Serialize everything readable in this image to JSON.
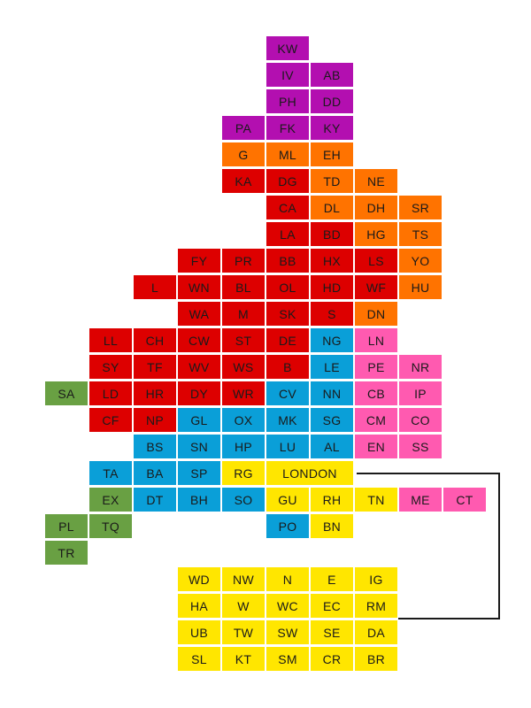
{
  "colors": {
    "purple": "#b30fb0",
    "orange": "#ff7300",
    "red": "#dd0000",
    "green": "#69a043",
    "blue": "#0a9fd8",
    "pink": "#ff5ab0",
    "yellow": "#ffe600"
  },
  "tiles": [
    {
      "code": "KW",
      "color": "purple"
    },
    {
      "code": "IV",
      "color": "purple"
    },
    {
      "code": "AB",
      "color": "purple"
    },
    {
      "code": "PH",
      "color": "purple"
    },
    {
      "code": "DD",
      "color": "purple"
    },
    {
      "code": "PA",
      "color": "purple"
    },
    {
      "code": "FK",
      "color": "purple"
    },
    {
      "code": "KY",
      "color": "purple"
    },
    {
      "code": "G",
      "color": "orange"
    },
    {
      "code": "ML",
      "color": "orange"
    },
    {
      "code": "EH",
      "color": "orange"
    },
    {
      "code": "KA",
      "color": "red"
    },
    {
      "code": "DG",
      "color": "red"
    },
    {
      "code": "TD",
      "color": "orange"
    },
    {
      "code": "NE",
      "color": "orange"
    },
    {
      "code": "CA",
      "color": "red"
    },
    {
      "code": "DL",
      "color": "orange"
    },
    {
      "code": "DH",
      "color": "orange"
    },
    {
      "code": "SR",
      "color": "orange"
    },
    {
      "code": "LA",
      "color": "red"
    },
    {
      "code": "BD",
      "color": "red"
    },
    {
      "code": "HG",
      "color": "orange"
    },
    {
      "code": "TS",
      "color": "orange"
    },
    {
      "code": "FY",
      "color": "red"
    },
    {
      "code": "PR",
      "color": "red"
    },
    {
      "code": "BB",
      "color": "red"
    },
    {
      "code": "HX",
      "color": "red"
    },
    {
      "code": "LS",
      "color": "red"
    },
    {
      "code": "YO",
      "color": "orange"
    },
    {
      "code": "L",
      "color": "red"
    },
    {
      "code": "WN",
      "color": "red"
    },
    {
      "code": "BL",
      "color": "red"
    },
    {
      "code": "OL",
      "color": "red"
    },
    {
      "code": "HD",
      "color": "red"
    },
    {
      "code": "WF",
      "color": "red"
    },
    {
      "code": "HU",
      "color": "orange"
    },
    {
      "code": "WA",
      "color": "red"
    },
    {
      "code": "M",
      "color": "red"
    },
    {
      "code": "SK",
      "color": "red"
    },
    {
      "code": "S",
      "color": "red"
    },
    {
      "code": "DN",
      "color": "orange"
    },
    {
      "code": "LL",
      "color": "red"
    },
    {
      "code": "CH",
      "color": "red"
    },
    {
      "code": "CW",
      "color": "red"
    },
    {
      "code": "ST",
      "color": "red"
    },
    {
      "code": "DE",
      "color": "red"
    },
    {
      "code": "NG",
      "color": "blue"
    },
    {
      "code": "LN",
      "color": "pink"
    },
    {
      "code": "SY",
      "color": "red"
    },
    {
      "code": "TF",
      "color": "red"
    },
    {
      "code": "WV",
      "color": "red"
    },
    {
      "code": "WS",
      "color": "red"
    },
    {
      "code": "B",
      "color": "red"
    },
    {
      "code": "LE",
      "color": "blue"
    },
    {
      "code": "PE",
      "color": "pink"
    },
    {
      "code": "NR",
      "color": "pink"
    },
    {
      "code": "SA",
      "color": "green"
    },
    {
      "code": "LD",
      "color": "red"
    },
    {
      "code": "HR",
      "color": "red"
    },
    {
      "code": "DY",
      "color": "red"
    },
    {
      "code": "WR",
      "color": "red"
    },
    {
      "code": "CV",
      "color": "blue"
    },
    {
      "code": "NN",
      "color": "blue"
    },
    {
      "code": "CB",
      "color": "pink"
    },
    {
      "code": "IP",
      "color": "pink"
    },
    {
      "code": "CF",
      "color": "red"
    },
    {
      "code": "NP",
      "color": "red"
    },
    {
      "code": "GL",
      "color": "blue"
    },
    {
      "code": "OX",
      "color": "blue"
    },
    {
      "code": "MK",
      "color": "blue"
    },
    {
      "code": "SG",
      "color": "blue"
    },
    {
      "code": "CM",
      "color": "pink"
    },
    {
      "code": "CO",
      "color": "pink"
    },
    {
      "code": "BS",
      "color": "blue"
    },
    {
      "code": "SN",
      "color": "blue"
    },
    {
      "code": "HP",
      "color": "blue"
    },
    {
      "code": "LU",
      "color": "blue"
    },
    {
      "code": "AL",
      "color": "blue"
    },
    {
      "code": "EN",
      "color": "pink"
    },
    {
      "code": "SS",
      "color": "pink"
    },
    {
      "code": "TA",
      "color": "blue"
    },
    {
      "code": "BA",
      "color": "blue"
    },
    {
      "code": "SP",
      "color": "blue"
    },
    {
      "code": "RG",
      "color": "yellow"
    },
    {
      "code": "LONDON",
      "color": "yellow"
    },
    {
      "code": "EX",
      "color": "green"
    },
    {
      "code": "DT",
      "color": "blue"
    },
    {
      "code": "BH",
      "color": "blue"
    },
    {
      "code": "SO",
      "color": "blue"
    },
    {
      "code": "GU",
      "color": "yellow"
    },
    {
      "code": "RH",
      "color": "yellow"
    },
    {
      "code": "TN",
      "color": "yellow"
    },
    {
      "code": "ME",
      "color": "pink"
    },
    {
      "code": "CT",
      "color": "pink"
    },
    {
      "code": "PL",
      "color": "green"
    },
    {
      "code": "TQ",
      "color": "green"
    },
    {
      "code": "PO",
      "color": "blue"
    },
    {
      "code": "BN",
      "color": "yellow"
    },
    {
      "code": "TR",
      "color": "green"
    },
    {
      "code": "WD",
      "color": "yellow"
    },
    {
      "code": "NW",
      "color": "yellow"
    },
    {
      "code": "N",
      "color": "yellow"
    },
    {
      "code": "E",
      "color": "yellow"
    },
    {
      "code": "IG",
      "color": "yellow"
    },
    {
      "code": "HA",
      "color": "yellow"
    },
    {
      "code": "W",
      "color": "yellow"
    },
    {
      "code": "WC",
      "color": "yellow"
    },
    {
      "code": "EC",
      "color": "yellow"
    },
    {
      "code": "RM",
      "color": "yellow"
    },
    {
      "code": "UB",
      "color": "yellow"
    },
    {
      "code": "TW",
      "color": "yellow"
    },
    {
      "code": "SW",
      "color": "yellow"
    },
    {
      "code": "SE",
      "color": "yellow"
    },
    {
      "code": "DA",
      "color": "yellow"
    },
    {
      "code": "SL",
      "color": "yellow"
    },
    {
      "code": "KT",
      "color": "yellow"
    },
    {
      "code": "SM",
      "color": "yellow"
    },
    {
      "code": "CR",
      "color": "yellow"
    },
    {
      "code": "BR",
      "color": "yellow"
    }
  ]
}
